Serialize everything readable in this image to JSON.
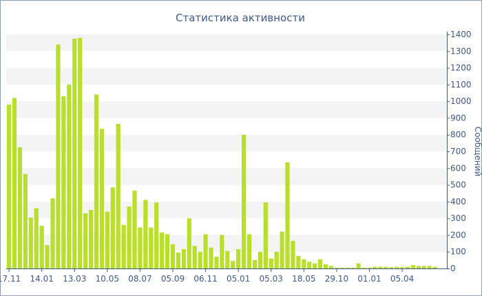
{
  "chart_data": {
    "type": "bar",
    "title": "Статистика активности",
    "ylabel": "Сообщений",
    "xlabel": "",
    "ylim": [
      0,
      1400
    ],
    "y_ticks": [
      0,
      100,
      200,
      300,
      400,
      500,
      600,
      700,
      800,
      900,
      1000,
      1100,
      1200,
      1300,
      1400
    ],
    "grid": "alternating horizontal bands",
    "y_axis_side": "right",
    "bar_color": "#b8df2c",
    "band_color": "#f4f4f4",
    "text_color": "#3e5a86",
    "x_tick_labels": [
      {
        "index": 0,
        "label": "17.11"
      },
      {
        "index": 6,
        "label": "14.01"
      },
      {
        "index": 12,
        "label": "13.03"
      },
      {
        "index": 18,
        "label": "10.05"
      },
      {
        "index": 24,
        "label": "08.07"
      },
      {
        "index": 30,
        "label": "05.09"
      },
      {
        "index": 36,
        "label": "06.11"
      },
      {
        "index": 42,
        "label": "05.01"
      },
      {
        "index": 48,
        "label": "05.03"
      },
      {
        "index": 54,
        "label": "18.05"
      },
      {
        "index": 60,
        "label": "29.10"
      },
      {
        "index": 66,
        "label": "01.01"
      },
      {
        "index": 72,
        "label": "05.04"
      }
    ],
    "values": [
      980,
      1020,
      725,
      565,
      305,
      360,
      255,
      140,
      420,
      1340,
      1030,
      1100,
      1375,
      1380,
      330,
      350,
      1040,
      835,
      340,
      485,
      865,
      260,
      370,
      465,
      245,
      410,
      245,
      395,
      215,
      205,
      145,
      95,
      115,
      300,
      135,
      100,
      205,
      125,
      70,
      200,
      105,
      45,
      115,
      800,
      205,
      50,
      100,
      395,
      60,
      100,
      220,
      635,
      165,
      75,
      55,
      40,
      30,
      55,
      25,
      15,
      5,
      5,
      5,
      5,
      30,
      5,
      5,
      10,
      10,
      10,
      8,
      10,
      8,
      10,
      20,
      15,
      15,
      15,
      10
    ]
  }
}
